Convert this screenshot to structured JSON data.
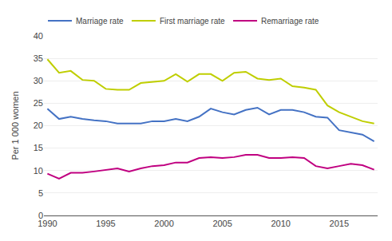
{
  "chart_data": {
    "type": "line",
    "ylabel": "Per 1 000 women",
    "x": [
      1990,
      1991,
      1992,
      1993,
      1994,
      1995,
      1996,
      1997,
      1998,
      1999,
      2000,
      2001,
      2002,
      2003,
      2004,
      2005,
      2006,
      2007,
      2008,
      2009,
      2010,
      2011,
      2012,
      2013,
      2014,
      2015,
      2016,
      2017,
      2018
    ],
    "series": [
      {
        "name": "Marriage rate",
        "color": "#4472C4",
        "values": [
          23.8,
          21.5,
          22.0,
          21.5,
          21.2,
          21.0,
          20.5,
          20.5,
          20.5,
          21.0,
          21.0,
          21.5,
          21.0,
          22.0,
          23.8,
          23.0,
          22.5,
          23.5,
          24.0,
          22.5,
          23.5,
          23.5,
          23.0,
          22.0,
          21.8,
          19.0,
          18.5,
          18.0,
          16.5
        ]
      },
      {
        "name": "First marriage rate",
        "color": "#BFCE00",
        "values": [
          34.8,
          31.8,
          32.2,
          30.2,
          30.0,
          28.2,
          28.0,
          28.0,
          29.5,
          29.8,
          30.0,
          31.5,
          29.8,
          31.5,
          31.5,
          30.0,
          31.8,
          32.0,
          30.5,
          30.2,
          30.5,
          28.8,
          28.5,
          28.0,
          24.5,
          23.0,
          22.0,
          21.0,
          20.5
        ]
      },
      {
        "name": "Remarriage rate",
        "color": "#C00080",
        "values": [
          9.3,
          8.2,
          9.5,
          9.5,
          9.8,
          10.2,
          10.5,
          9.8,
          10.5,
          11.0,
          11.2,
          11.8,
          11.8,
          12.8,
          13.0,
          12.8,
          13.0,
          13.5,
          13.5,
          12.8,
          12.8,
          13.0,
          12.8,
          11.0,
          10.5,
          11.0,
          11.5,
          11.2,
          10.2
        ]
      }
    ],
    "xlim": [
      1989.7,
      2018.3
    ],
    "xticks": [
      1990,
      1995,
      2000,
      2005,
      2010,
      2015
    ],
    "ylim": [
      0,
      40
    ],
    "yticks": [
      0,
      5,
      10,
      15,
      20,
      25,
      30,
      35,
      40
    ],
    "grid": true,
    "legend": "upper left"
  }
}
